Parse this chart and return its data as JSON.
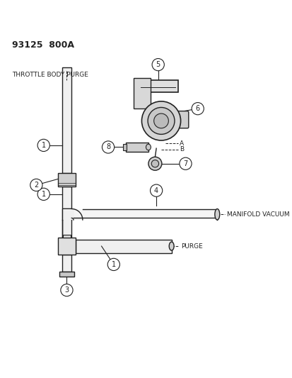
{
  "title": "93125  800A",
  "background_color": "#ffffff",
  "line_color": "#222222",
  "throttle_body_purge_label": "THROTTLE BODY PURGE",
  "manifold_vacuum_label": "MANIFOLD VACUUM",
  "purge_label": "PURGE",
  "fig_w": 4.14,
  "fig_h": 5.33,
  "dpi": 100
}
